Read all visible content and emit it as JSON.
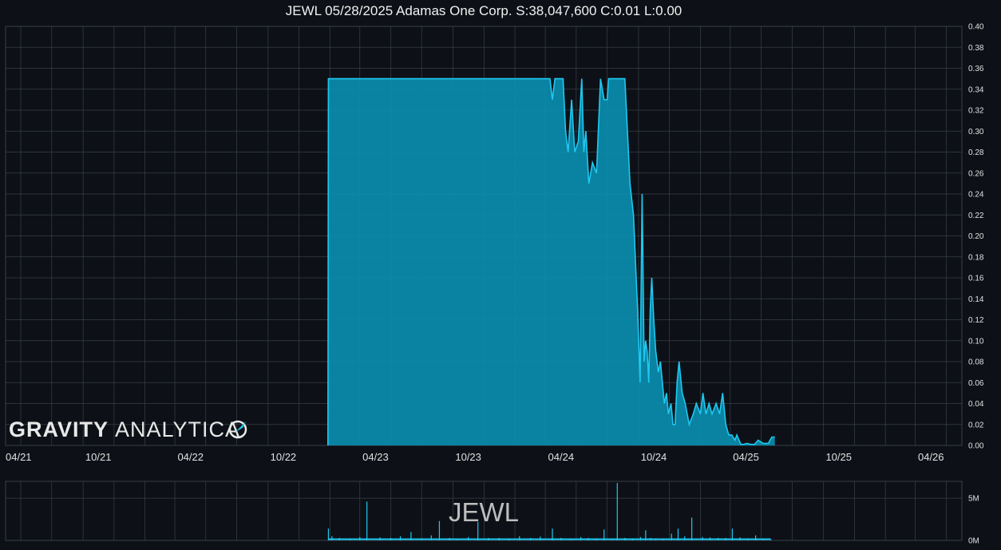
{
  "header": {
    "title": "JEWL 05/28/2025 Adamas One Corp. S:38,047,600 C:0.01 L:0.00"
  },
  "logo": {
    "bold": "GRAVITY",
    "thin": "ANALYTICA"
  },
  "watermark": "JEWL",
  "colors": {
    "background": "#0d1117",
    "line": "#1ec8f0",
    "fill": "#0a8fb0",
    "grid": "#3a3f46"
  },
  "chart_data": {
    "type": "area",
    "xlim": [
      "2021-04-01",
      "2026-06-01"
    ],
    "ylim": [
      0,
      0.4
    ],
    "x_ticks": [
      "04/21",
      "10/21",
      "04/22",
      "10/22",
      "04/23",
      "10/23",
      "04/24",
      "10/24",
      "04/25",
      "10/25",
      "04/26"
    ],
    "y_ticks": [
      "0.00",
      "0.02",
      "0.04",
      "0.06",
      "0.08",
      "0.10",
      "0.12",
      "0.14",
      "0.16",
      "0.18",
      "0.20",
      "0.22",
      "0.24",
      "0.26",
      "0.28",
      "0.30",
      "0.32",
      "0.34",
      "0.36",
      "0.38",
      "0.40"
    ],
    "grid": true,
    "price_series": {
      "x": [
        "2022-12-28",
        "2022-12-29",
        "2024-03-10",
        "2024-03-15",
        "2024-03-20",
        "2024-03-25",
        "2024-04-05",
        "2024-04-10",
        "2024-04-15",
        "2024-04-22",
        "2024-04-28",
        "2024-05-05",
        "2024-05-12",
        "2024-05-16",
        "2024-05-20",
        "2024-05-26",
        "2024-06-02",
        "2024-06-10",
        "2024-06-18",
        "2024-06-25",
        "2024-07-01",
        "2024-07-04",
        "2024-07-08",
        "2024-07-14",
        "2024-07-20",
        "2024-08-05",
        "2024-08-15",
        "2024-08-22",
        "2024-08-30",
        "2024-09-04",
        "2024-09-08",
        "2024-09-12",
        "2024-09-15",
        "2024-09-18",
        "2024-09-21",
        "2024-09-24",
        "2024-09-27",
        "2024-10-01",
        "2024-10-05",
        "2024-10-10",
        "2024-10-14",
        "2024-10-18",
        "2024-10-22",
        "2024-10-26",
        "2024-10-30",
        "2024-11-04",
        "2024-11-08",
        "2024-11-12",
        "2024-11-16",
        "2024-11-20",
        "2024-11-26",
        "2024-12-02",
        "2024-12-10",
        "2024-12-18",
        "2024-12-24",
        "2025-01-01",
        "2025-01-06",
        "2025-01-12",
        "2025-01-18",
        "2025-01-24",
        "2025-02-01",
        "2025-02-08",
        "2025-02-14",
        "2025-02-20",
        "2025-02-26",
        "2025-03-04",
        "2025-03-10",
        "2025-03-14",
        "2025-03-18",
        "2025-03-22",
        "2025-03-27",
        "2025-04-03",
        "2025-04-10",
        "2025-04-18",
        "2025-04-25",
        "2025-05-05",
        "2025-05-15",
        "2025-05-22",
        "2025-05-28"
      ],
      "y": [
        0,
        0.35,
        0.35,
        0.33,
        0.35,
        0.35,
        0.35,
        0.3,
        0.28,
        0.33,
        0.28,
        0.29,
        0.35,
        0.28,
        0.3,
        0.25,
        0.27,
        0.26,
        0.35,
        0.33,
        0.33,
        0.35,
        0.35,
        0.35,
        0.35,
        0.35,
        0.25,
        0.22,
        0.13,
        0.06,
        0.24,
        0.08,
        0.1,
        0.09,
        0.06,
        0.13,
        0.16,
        0.12,
        0.09,
        0.07,
        0.08,
        0.06,
        0.04,
        0.05,
        0.03,
        0.04,
        0.02,
        0.02,
        0.06,
        0.08,
        0.05,
        0.04,
        0.02,
        0.03,
        0.04,
        0.03,
        0.05,
        0.03,
        0.04,
        0.03,
        0.04,
        0.03,
        0.05,
        0.02,
        0.01,
        0.01,
        0.005,
        0.01,
        0.005,
        0.001,
        0.001,
        0.002,
        0.001,
        0.001,
        0.005,
        0.002,
        0.002,
        0.008,
        0.008
      ]
    },
    "volume_series": {
      "ylim": [
        0,
        7000000
      ],
      "y_ticks": [
        "0M",
        "5M"
      ],
      "x": [
        "2022-12-29",
        "2023-01-05",
        "2023-01-20",
        "2023-02-10",
        "2023-03-01",
        "2023-03-15",
        "2023-04-10",
        "2023-05-01",
        "2023-05-20",
        "2023-06-10",
        "2023-07-01",
        "2023-07-20",
        "2023-08-05",
        "2023-08-25",
        "2023-09-10",
        "2023-10-01",
        "2023-10-20",
        "2023-11-10",
        "2023-12-01",
        "2023-12-20",
        "2024-01-10",
        "2024-02-01",
        "2024-02-20",
        "2024-03-15",
        "2024-04-01",
        "2024-04-20",
        "2024-05-10",
        "2024-05-25",
        "2024-06-10",
        "2024-06-25",
        "2024-07-10",
        "2024-07-21",
        "2024-08-05",
        "2024-08-20",
        "2024-09-05",
        "2024-09-15",
        "2024-09-25",
        "2024-10-05",
        "2024-10-20",
        "2024-11-05",
        "2024-11-18",
        "2024-12-01",
        "2024-12-15",
        "2025-01-05",
        "2025-01-20",
        "2025-02-05",
        "2025-02-20",
        "2025-03-05",
        "2025-03-20",
        "2025-04-05",
        "2025-04-20",
        "2025-05-05",
        "2025-05-20"
      ],
      "y": [
        1400000,
        500000,
        300000,
        250000,
        400000,
        4600000,
        350000,
        300000,
        500000,
        1000000,
        250000,
        600000,
        2300000,
        300000,
        200000,
        400000,
        2200000,
        300000,
        300000,
        250000,
        500000,
        300000,
        450000,
        1400000,
        300000,
        200000,
        400000,
        300000,
        250000,
        1300000,
        200000,
        6800000,
        300000,
        250000,
        400000,
        1200000,
        300000,
        250000,
        200000,
        800000,
        1400000,
        500000,
        2700000,
        400000,
        350000,
        300000,
        300000,
        1400000,
        350000,
        250000,
        600000,
        150000,
        100000
      ]
    }
  }
}
